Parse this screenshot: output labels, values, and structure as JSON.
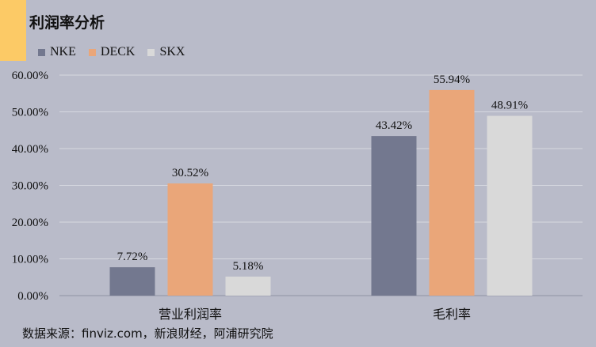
{
  "title": "利润率分析",
  "source_text": "数据来源：finviz.com，新浪财经，阿浦研究院",
  "colors": {
    "background": "#b9bbc9",
    "accent": "#fcca66",
    "NKE": "#73788f",
    "DECK": "#eaa679",
    "SKX": "#d9d9d9"
  },
  "chart_data": {
    "type": "bar",
    "title": "利润率分析",
    "categories": [
      "营业利润率",
      "毛利率"
    ],
    "series": [
      {
        "name": "NKE",
        "values": [
          7.72,
          43.42
        ],
        "labels": [
          "7.72%",
          "43.42%"
        ]
      },
      {
        "name": "DECK",
        "values": [
          30.52,
          55.94
        ],
        "labels": [
          "30.52%",
          "55.94%"
        ]
      },
      {
        "name": "SKX",
        "values": [
          5.18,
          48.91
        ],
        "labels": [
          "5.18%",
          "48.91%"
        ]
      }
    ],
    "yticks": [
      "0.00%",
      "10.00%",
      "20.00%",
      "30.00%",
      "40.00%",
      "50.00%",
      "60.00%"
    ],
    "ylim": [
      0,
      60
    ],
    "grid": true,
    "legend": "top-left"
  }
}
